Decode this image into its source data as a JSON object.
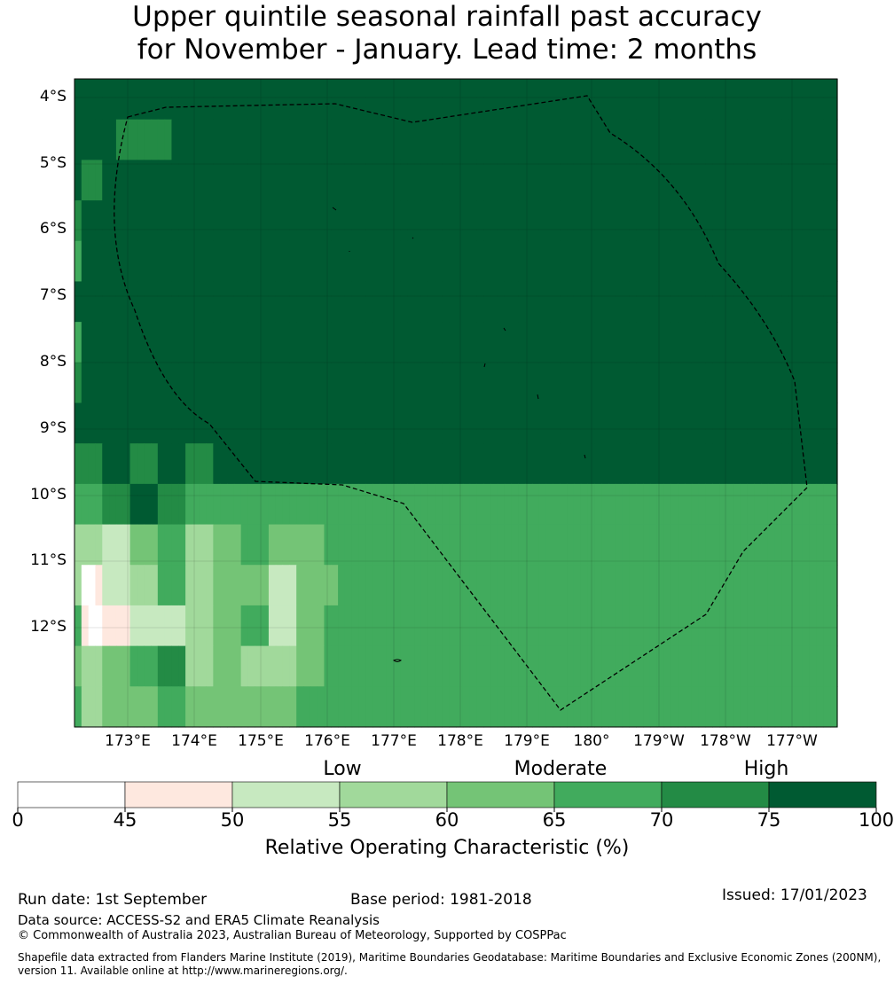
{
  "title": {
    "line1": "Upper quintile seasonal rainfall past accuracy",
    "line2": "for November - January. Lead time: 2 months"
  },
  "chart_data": {
    "type": "heatmap",
    "lat_labels": [
      "4°S",
      "5°S",
      "6°S",
      "7°S",
      "8°S",
      "9°S",
      "10°S",
      "11°S",
      "12°S"
    ],
    "lon_labels": [
      "173°E",
      "174°E",
      "175°E",
      "176°E",
      "177°E",
      "178°E",
      "179°E",
      "180°",
      "179°W",
      "178°W",
      "177°W"
    ],
    "category_labels": [
      "Low",
      "Moderate",
      "High"
    ],
    "colorbar": {
      "ticks": [
        "0",
        "45",
        "50",
        "55",
        "60",
        "65",
        "70",
        "75",
        "100"
      ],
      "colors": [
        "#ffffff",
        "#fee8df",
        "#c7e9c0",
        "#a1d99b",
        "#74c476",
        "#41ab5d",
        "#238b45",
        "#005a32"
      ],
      "label": "Relative Operating Characteristic (%)"
    },
    "grid_levels": [
      "77777777777777777777777777777777777777777777777777777777777777777777777777777777777777777777777777777777777777",
      "77777766666666777777777777777777777777777777777777777777777777777777777777777777777777777777777777777777777777",
      "76667777777777777777777777777777777777777777777777777777777777777777777777777777777777777777777777777777777777",
      "67777777777777777777777777777777777777777777777777777777777777777777777777777777777777777777777777777777777777",
      "57777777777777777777777777777777777777777777777777777777777777777777777777777777777777777777777777777777777777",
      "77777777777777777777777777777777777777777777777777777777777777777777777777777777777777777777777777777777777777",
      "57777777777777777777777777777777777777777777777777777777777777777777777777777777777777777777777777777777777777",
      "67777777777777777777777777777777777777777777777777777777777777777777777777777777777777777777777777777777777777",
      "77777777777777777777777777777777777777777777777777777777777777777777777777777777777777777777777777777777777777",
      "66667777666677776666777777777777777777777777777777777777777777777777777777777777777777777777777777777777777777",
      "55556666777766665555555555555555555555555555555555555555555555555555555555555555555555555555555555555555555555",
      "33332222444455553333444455554444444455555555555555555555555555555555555555555555555555555555555555555555555555",
      "30012222333355553333444444442222444444555555555555555555555555555555555555555555555555555555555555555555555555",
      "51001111222222223333444455552222444455555555555555555555555555555555555555555555555555555555555555555555555555",
      "43334444555566663333444433333333444455555555555555555555555555555555555555555555555555555555555555555555555555",
      "53334444444455554444444444444444555555555555555555555555555555555555555555555555555555555555555555555555555555"
    ]
  },
  "footer": {
    "run_date": "Run date: 1st September",
    "base_period": "Base period: 1981-2018",
    "issued": "Issued: 17/01/2023",
    "data_source": "Data source: ACCESS-S2 and ERA5 Climate Reanalysis",
    "copyright": "© Commonwealth of Australia 2023, Australian Bureau of Meteorology, Supported by COSPPac",
    "shapefile_line1": "Shapefile data extracted from Flanders Marine Institute (2019), Maritime Boundaries Geodatabase: Maritime Boundaries and Exclusive Economic Zones (200NM),",
    "shapefile_line2": "version 11. Available online at http://www.marineregions.org/."
  }
}
